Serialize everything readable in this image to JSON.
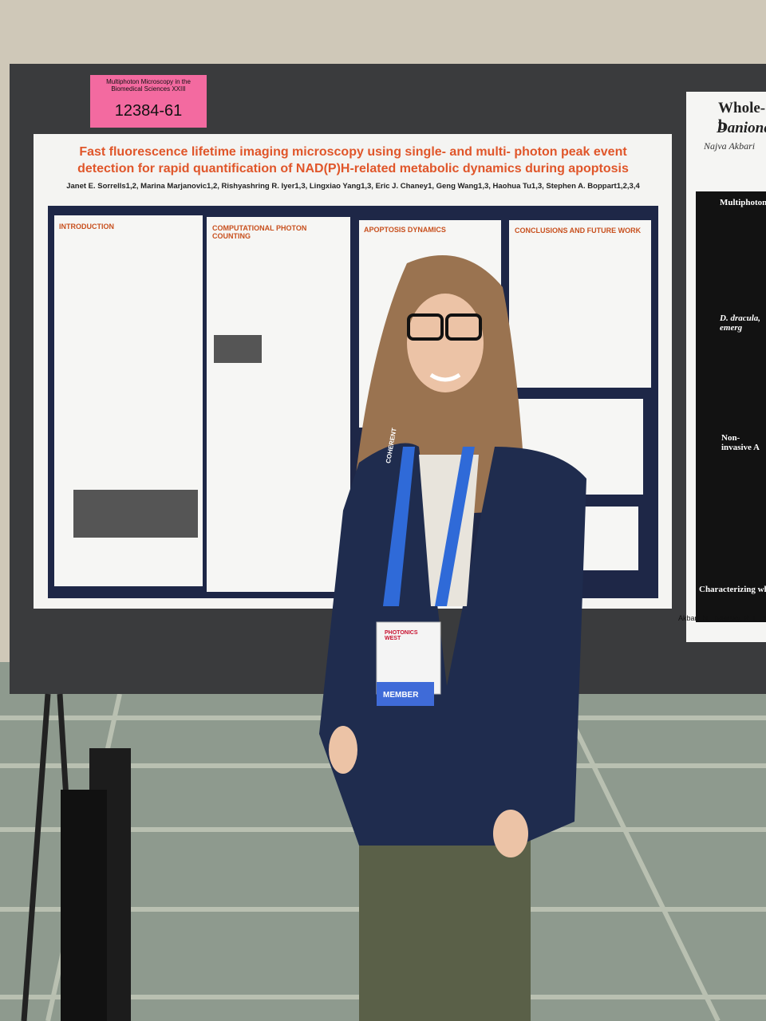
{
  "sign": {
    "session": "Multiphoton Microscopy in the Biomedical Sciences XXIII",
    "number": "12384-61"
  },
  "poster": {
    "title": "Fast fluorescence lifetime imaging microscopy using single- and multi- photon peak event detection for rapid quantification of NAD(P)H-related metabolic dynamics during apoptosis",
    "authors": "Janet E. Sorrells1,2, Marina Marjanovic1,2, Rishyashring R. Iyer1,3, Lingxiao Yang1,3, Eric J. Chaney1, Geng Wang1,3, Haohua Tu1,3, Stephen A. Boppart1,2,3,4",
    "sections": [
      "INTRODUCTION",
      "COMPUTATIONAL PHOTON COUNTING",
      "APOPTOSIS DYNAMICS",
      "CONCLUSIONS AND FUTURE WORK"
    ]
  },
  "neighbor_poster": {
    "title": "Whole-b",
    "subtitle": "Danione",
    "author": "Najva Akbari",
    "headings": [
      "Multiphoton",
      "D. dracula, emerg",
      "Non-invasive A",
      "Characterizing whole-br"
    ],
    "citation": "Akbari, N., Tatarsky, R. L., Kolk"
  },
  "badge": {
    "lanyard": "COHERENT",
    "event": "PHOTONICS WEST",
    "ribbon": "MEMBER"
  }
}
